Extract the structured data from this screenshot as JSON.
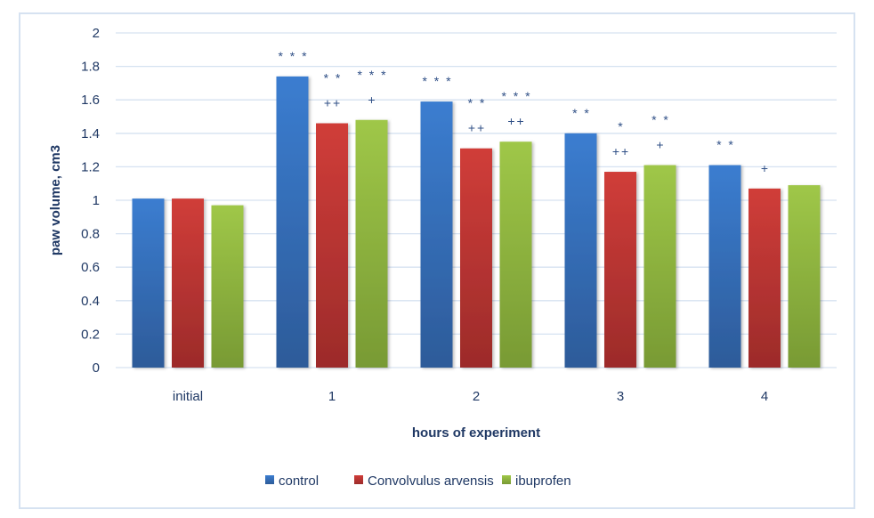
{
  "chart_data": {
    "type": "bar",
    "title": "",
    "xlabel": "hours of experiment",
    "ylabel": "paw volume, cm3",
    "ylim": [
      0,
      2
    ],
    "yticks": [
      "0",
      "0.2",
      "0.4",
      "0.6",
      "0.8",
      "1",
      "1.2",
      "1.4",
      "1.6",
      "1.8",
      "2"
    ],
    "grid": true,
    "legend_position": "bottom",
    "categories": [
      "initial",
      "1",
      "2",
      "3",
      "4"
    ],
    "series": [
      {
        "name": "control",
        "color": "#3a78c9",
        "values": [
          1.01,
          1.74,
          1.59,
          1.4,
          1.21
        ],
        "annotations": [
          "",
          "***",
          "***",
          "**",
          "**"
        ]
      },
      {
        "name": "Convolvulus arvensis",
        "color": "#cc3a36",
        "values": [
          1.01,
          1.46,
          1.31,
          1.17,
          1.07
        ],
        "annotations": [
          "",
          "**\n++",
          "**\n++",
          "*\n++",
          "+"
        ]
      },
      {
        "name": "ibuprofen",
        "color": "#9bc446",
        "values": [
          0.97,
          1.48,
          1.35,
          1.21,
          1.09
        ],
        "annotations": [
          "",
          "***\n+",
          "***\n++",
          "**\n+",
          ""
        ]
      }
    ]
  }
}
